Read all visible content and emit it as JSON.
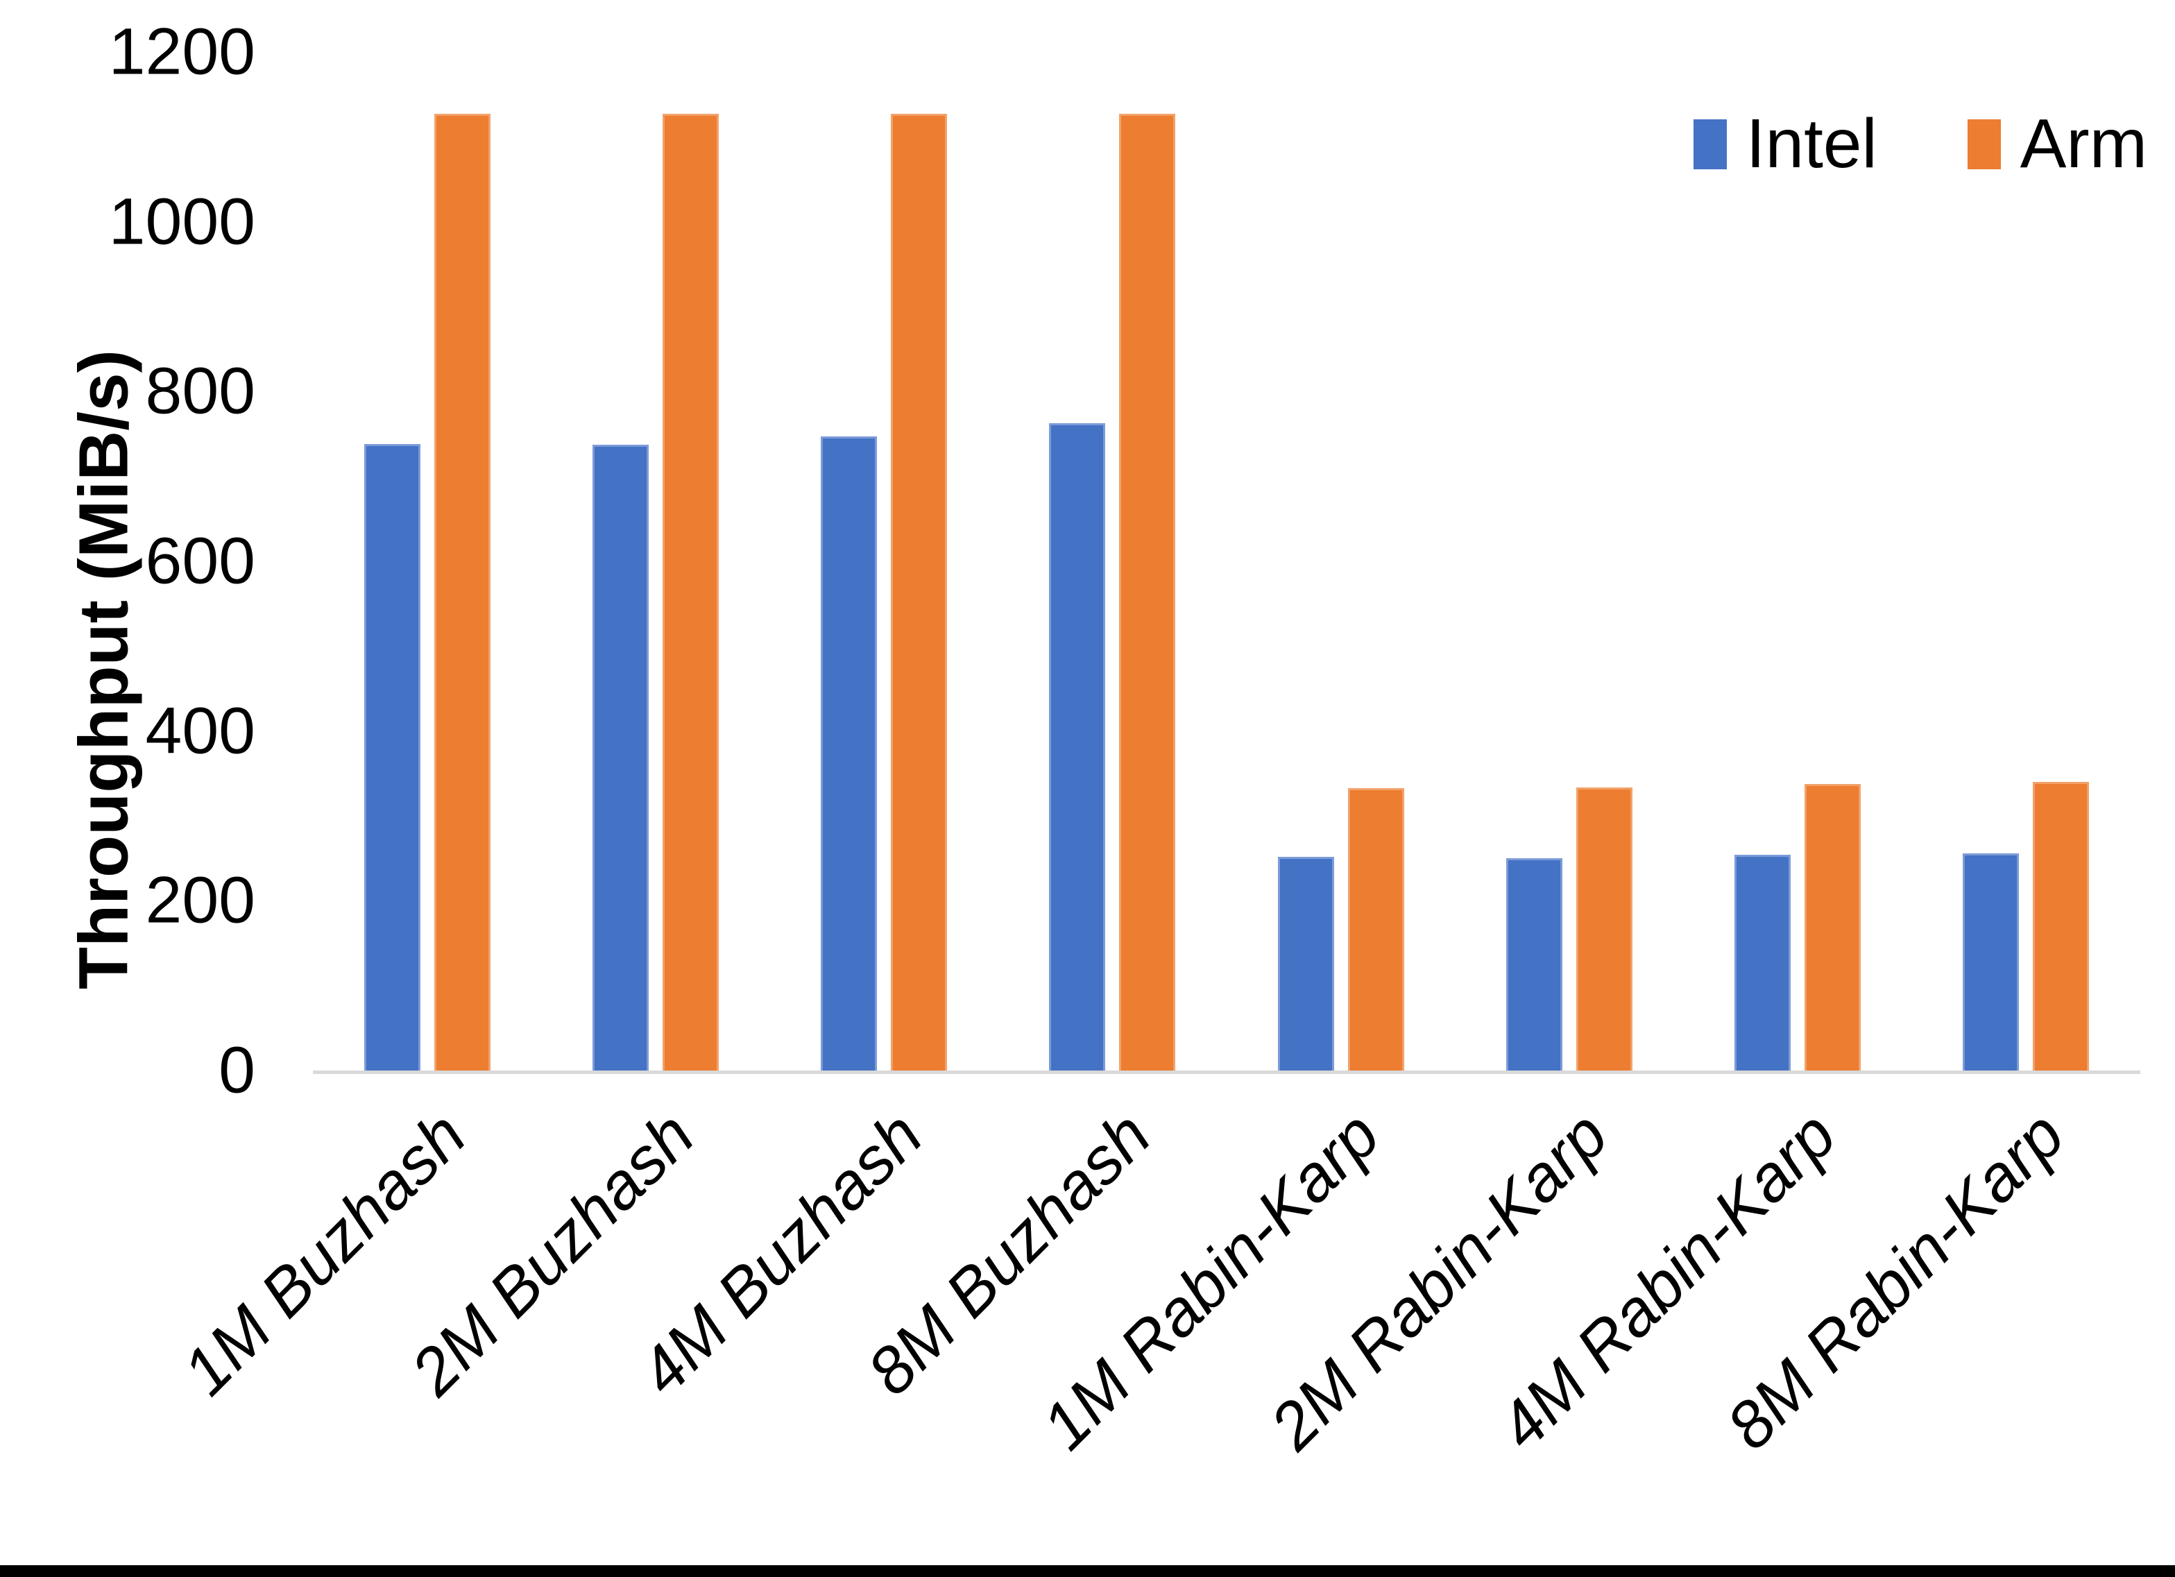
{
  "chart_data": {
    "type": "bar",
    "title": "",
    "xlabel": "",
    "ylabel": "Throughput (MiB/s)",
    "categories": [
      "1M Buzhash",
      "2M Buzhash",
      "4M Buzhash",
      "8M Buzhash",
      "1M Rabin-Karp",
      "2M Rabin-Karp",
      "4M Rabin-Karp",
      "8M Rabin-Karp"
    ],
    "series": [
      {
        "name": "Intel",
        "color": "#4472C4",
        "values": [
          736,
          735,
          745,
          760,
          249,
          248,
          252,
          253
        ]
      },
      {
        "name": "Arm",
        "color": "#ED7D31",
        "values": [
          1125,
          1125,
          1125,
          1125,
          330,
          331,
          335,
          338
        ]
      }
    ],
    "ylim": [
      0,
      1200
    ],
    "yticks": [
      0,
      200,
      400,
      600,
      800,
      1000,
      1200
    ],
    "grid": false,
    "legend_position": "top-right",
    "axis_line_color": "#D9D9D9",
    "page_border_color": "#000000"
  }
}
